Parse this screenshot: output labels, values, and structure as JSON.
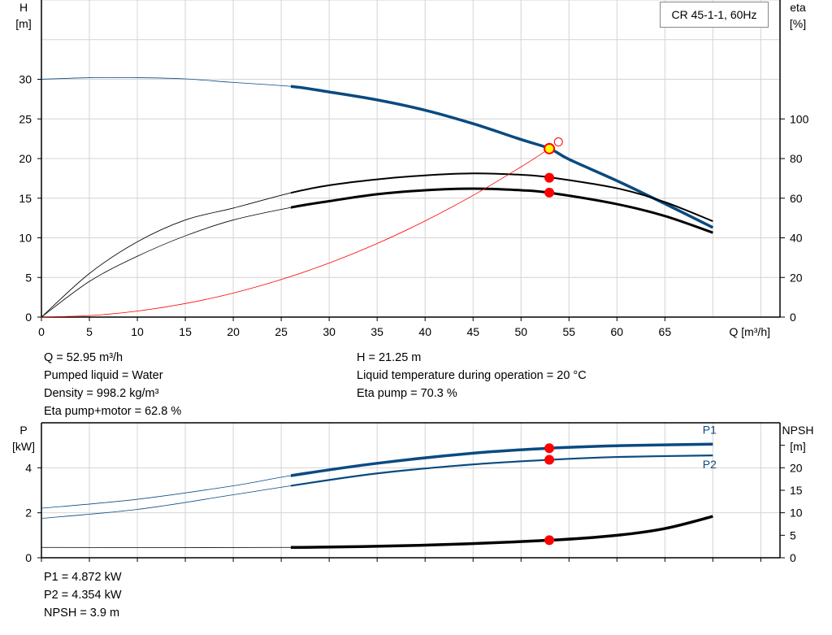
{
  "legend": "CR 45-1-1, 60Hz",
  "colors": {
    "head": "#0a4a80",
    "efficiency": "#000000",
    "system": "#ff0000",
    "point": "#ff0000",
    "duty_point_fill": "#ffff00",
    "power": "#0a4a80",
    "npsh": "#000000",
    "grid": "#d4d4d4"
  },
  "info_top": {
    "left": [
      "Q = 52.95 m³/h",
      "Pumped liquid = Water",
      "Density = 998.2 kg/m³",
      "Eta pump+motor = 62.8 %"
    ],
    "right": [
      "H = 21.25 m",
      "Liquid temperature during operation = 20 °C",
      "Eta pump = 70.3 %"
    ]
  },
  "info_bottom": [
    "P1 = 4.872 kW",
    "P2 = 4.354 kW",
    "NPSH = 3.9 m"
  ],
  "chart_data": [
    {
      "type": "line",
      "xlabel": "Q [m³/h]",
      "ylabel": "H\n[m]",
      "y2label": "eta\n[%]",
      "xlim": [
        0,
        77
      ],
      "ylim": [
        0,
        40
      ],
      "y2lim": [
        0,
        160
      ],
      "xticks": [
        0,
        5,
        10,
        15,
        20,
        25,
        30,
        35,
        40,
        45,
        50,
        55,
        60,
        65
      ],
      "yticks": [
        0,
        5,
        10,
        15,
        20,
        25,
        30
      ],
      "y2ticks": [
        0,
        20,
        40,
        60,
        80,
        100
      ],
      "grid": true,
      "thick_from_q": 26,
      "series": [
        {
          "id": "head",
          "axis": "y",
          "x": [
            0,
            5,
            10,
            15,
            20,
            26,
            30,
            35,
            40,
            45,
            50,
            53,
            55,
            60,
            65,
            70
          ],
          "y": [
            30,
            30.2,
            30.2,
            30.05,
            29.6,
            29.1,
            28.4,
            27.4,
            26.1,
            24.4,
            22.4,
            21.25,
            19.9,
            17.2,
            14.3,
            11.3
          ]
        },
        {
          "id": "eta-pump",
          "axis": "y2",
          "x": [
            0,
            5,
            10,
            15,
            20,
            26,
            30,
            35,
            40,
            45,
            50,
            53,
            60,
            65,
            70
          ],
          "y": [
            0,
            22,
            38,
            49,
            55,
            62.7,
            66.5,
            69.5,
            71.5,
            72.5,
            71.8,
            70.5,
            65,
            58,
            48.4
          ]
        },
        {
          "id": "eta-pump-motor",
          "axis": "y2",
          "x": [
            0,
            5,
            10,
            15,
            20,
            26,
            30,
            35,
            40,
            45,
            50,
            53,
            60,
            65,
            70
          ],
          "y": [
            0,
            18,
            30.7,
            41,
            49,
            55.3,
            58.5,
            62,
            64,
            64.8,
            64,
            62.7,
            57,
            51,
            42.6
          ]
        },
        {
          "id": "system",
          "axis": "y",
          "x": [
            0,
            5,
            10,
            15,
            20,
            25,
            30,
            35,
            40,
            45,
            50,
            52.95
          ],
          "y": [
            0,
            0.19,
            0.76,
            1.71,
            3.03,
            4.74,
            6.82,
            9.28,
            12.13,
            15.35,
            18.95,
            21.25
          ]
        }
      ],
      "points": [
        {
          "axis": "y",
          "x": 52.95,
          "y": 21.25,
          "style": "duty"
        },
        {
          "axis": "y2",
          "x": 52.95,
          "y": 70.3,
          "style": "dot"
        },
        {
          "axis": "y2",
          "x": 52.95,
          "y": 62.8,
          "style": "dot"
        },
        {
          "axis": "y",
          "x": 53.9,
          "y": 22.1,
          "style": "open"
        }
      ]
    },
    {
      "type": "line",
      "ylabel": "P\n[kW]",
      "y2label": "NPSH\n[m]",
      "xlim": [
        0,
        77
      ],
      "ylim": [
        0,
        6
      ],
      "y2lim": [
        0,
        30
      ],
      "yticks": [
        0,
        2,
        4
      ],
      "y2ticks": [
        0,
        5,
        10,
        15,
        20,
        25
      ],
      "y2tick_labels": [
        "0",
        "5",
        "10",
        "15",
        "20",
        ""
      ],
      "grid": true,
      "thick_from_q": 26,
      "series": [
        {
          "id": "P1",
          "name": "P1",
          "axis": "y",
          "x": [
            0,
            10,
            20,
            26,
            35,
            45,
            53,
            60,
            70
          ],
          "y": [
            2.2,
            2.6,
            3.2,
            3.65,
            4.2,
            4.65,
            4.872,
            4.98,
            5.05
          ]
        },
        {
          "id": "P2",
          "name": "P2",
          "axis": "y",
          "x": [
            0,
            10,
            20,
            26,
            35,
            45,
            53,
            60,
            70
          ],
          "y": [
            1.75,
            2.15,
            2.8,
            3.2,
            3.75,
            4.15,
            4.354,
            4.48,
            4.55
          ]
        },
        {
          "id": "NPSH",
          "axis": "y2",
          "x": [
            0,
            26,
            40,
            53,
            60,
            65,
            70
          ],
          "y": [
            2.3,
            2.3,
            2.8,
            3.9,
            5.0,
            6.5,
            9.2
          ]
        }
      ],
      "points": [
        {
          "axis": "y",
          "x": 52.95,
          "y": 4.872,
          "style": "dot"
        },
        {
          "axis": "y",
          "x": 52.95,
          "y": 4.354,
          "style": "dot"
        },
        {
          "axis": "y2",
          "x": 52.95,
          "y": 3.9,
          "style": "dot"
        }
      ]
    }
  ]
}
